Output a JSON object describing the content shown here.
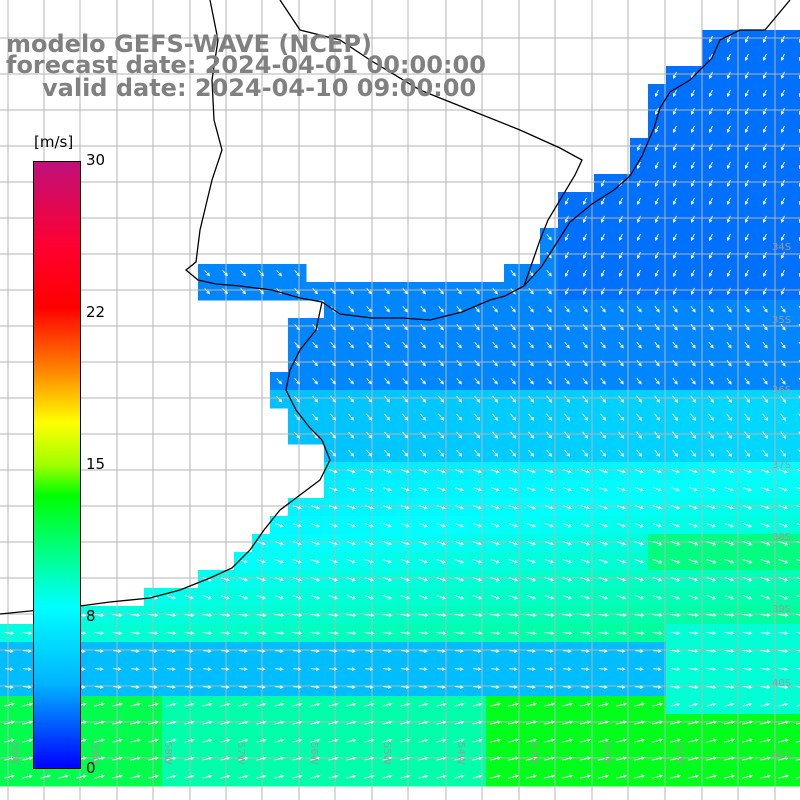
{
  "title": {
    "line1": "modelo GEFS-WAVE (NCEP)",
    "line2": "forecast date: 2024-04-01 00:00:00",
    "line3": "valid date: 2024-04-10 09:00:00"
  },
  "colorbar": {
    "unit": "[m/s]",
    "ticks": [
      "30",
      "22",
      "15",
      "8",
      "0"
    ],
    "range": [
      0,
      30
    ],
    "colors": [
      "#0000ff",
      "#00b4ff",
      "#00ffff",
      "#00ff80",
      "#00ff00",
      "#ffff00",
      "#ff8000",
      "#ff0000",
      "#c0107a"
    ]
  },
  "lat_labels": [
    "34S",
    "35S",
    "36S",
    "37S",
    "38S",
    "39S",
    "40S",
    "41S"
  ],
  "lon_labels": [
    "60W",
    "59W",
    "58W",
    "57W",
    "56W",
    "55W",
    "54W",
    "53W",
    "52W",
    "51W"
  ],
  "field": {
    "variable": "wind speed and direction",
    "dominant_direction": "north-westerly to westerly",
    "strong_wind_zone": "south, near 40S-41S",
    "land_color": "#ffffff",
    "grid_color": "#b4b4b4",
    "coast_color": "#000000",
    "arrow_color": "#ffffff"
  }
}
